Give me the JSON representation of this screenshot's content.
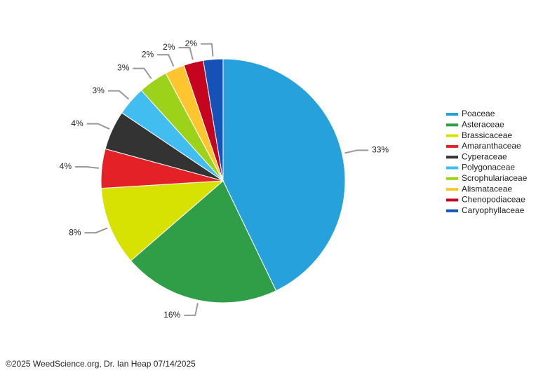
{
  "chart_data": {
    "type": "pie",
    "categories": [
      "Poaceae",
      "Asteraceae",
      "Brassicaceae",
      "Amaranthaceae",
      "Cyperaceae",
      "Polygonaceae",
      "Scrophulariaceae",
      "Alismataceae",
      "Chenopodiaceae",
      "Caryophyllaceae"
    ],
    "values": [
      33,
      16,
      8,
      4,
      4,
      3,
      3,
      2,
      2,
      2
    ],
    "value_labels": [
      "33%",
      "16%",
      "8%",
      "4%",
      "4%",
      "3%",
      "3%",
      "2%",
      "2%",
      "2%"
    ],
    "colors": [
      "#27a1db",
      "#2f9e47",
      "#d8e202",
      "#e42127",
      "#333333",
      "#41bdf0",
      "#9dd21b",
      "#fdc62f",
      "#c5051f",
      "#1452b8"
    ],
    "legend": "right"
  },
  "footer": "©2025 WeedScience.org, Dr. Ian Heap 07/14/2025"
}
